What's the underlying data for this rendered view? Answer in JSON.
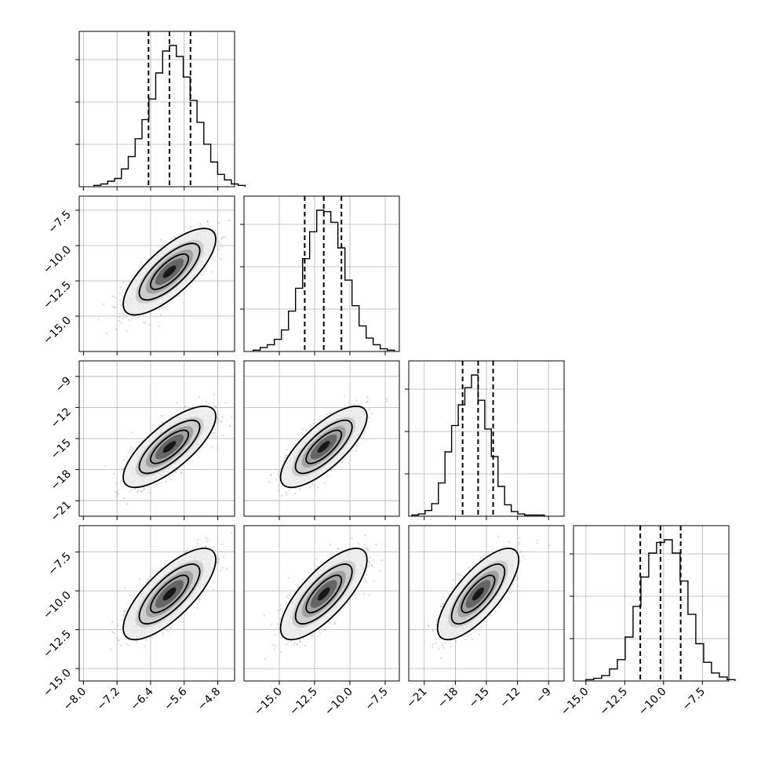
{
  "chart_data": {
    "type": "corner",
    "grid": true,
    "colors": {
      "line": "#000000",
      "grid": "#b0b0b0",
      "scatter": "#8c8c8c"
    },
    "parameters": [
      {
        "range": [
          -8.1,
          -4.4
        ],
        "ticks": [
          -8.0,
          -7.2,
          -6.4,
          -5.6,
          -4.8
        ],
        "tick_labels": [
          "−8.0",
          "−7.2",
          "−6.4",
          "−5.6",
          "−4.8"
        ],
        "sd": 0.45
      },
      {
        "range": [
          -17.5,
          -6.5
        ],
        "ticks": [
          -15.0,
          -12.5,
          -10.0,
          -7.5
        ],
        "tick_labels": [
          "−15.0",
          "−12.5",
          "−10.0",
          "−7.5"
        ],
        "sd": 1.25
      },
      {
        "range": [
          -22.5,
          -7.5
        ],
        "ticks": [
          -21,
          -18,
          -15,
          -12,
          -9
        ],
        "tick_labels": [
          "−21",
          "−18",
          "−15",
          "−12",
          "−9"
        ],
        "sd": 1.6
      },
      {
        "range": [
          -15.8,
          -5.8
        ],
        "ticks": [
          -15.0,
          -12.5,
          -10.0,
          -7.5
        ],
        "tick_labels": [
          "−15.0",
          "−12.5",
          "−10.0",
          "−7.5"
        ],
        "sd": 1.2
      }
    ],
    "quantiles": [
      [
        -6.45,
        -5.95,
        -5.45
      ],
      [
        -13.2,
        -11.85,
        -10.6
      ],
      [
        -17.3,
        -15.8,
        -14.35
      ],
      [
        -11.5,
        -10.2,
        -8.9
      ]
    ],
    "histograms": [
      {
        "counts": [
          1,
          2,
          4,
          6,
          13,
          22,
          35,
          49,
          64,
          83,
          99,
          103,
          95,
          80,
          63,
          47,
          31,
          18,
          9,
          5,
          2,
          1
        ]
      },
      {
        "counts": [
          1,
          3,
          5,
          9,
          16,
          30,
          47,
          69,
          89,
          105,
          104,
          96,
          77,
          53,
          34,
          19,
          10,
          5,
          2,
          1
        ]
      },
      {
        "counts": [
          1,
          2,
          5,
          11,
          29,
          56,
          79,
          97,
          112,
          123,
          101,
          76,
          52,
          26,
          10,
          4,
          2,
          1,
          1,
          1
        ]
      },
      {
        "counts": [
          1,
          2,
          4,
          9,
          16,
          33,
          56,
          78,
          96,
          104,
          106,
          96,
          75,
          50,
          28,
          14,
          6,
          3,
          1
        ]
      }
    ],
    "correlation": 0.75
  }
}
